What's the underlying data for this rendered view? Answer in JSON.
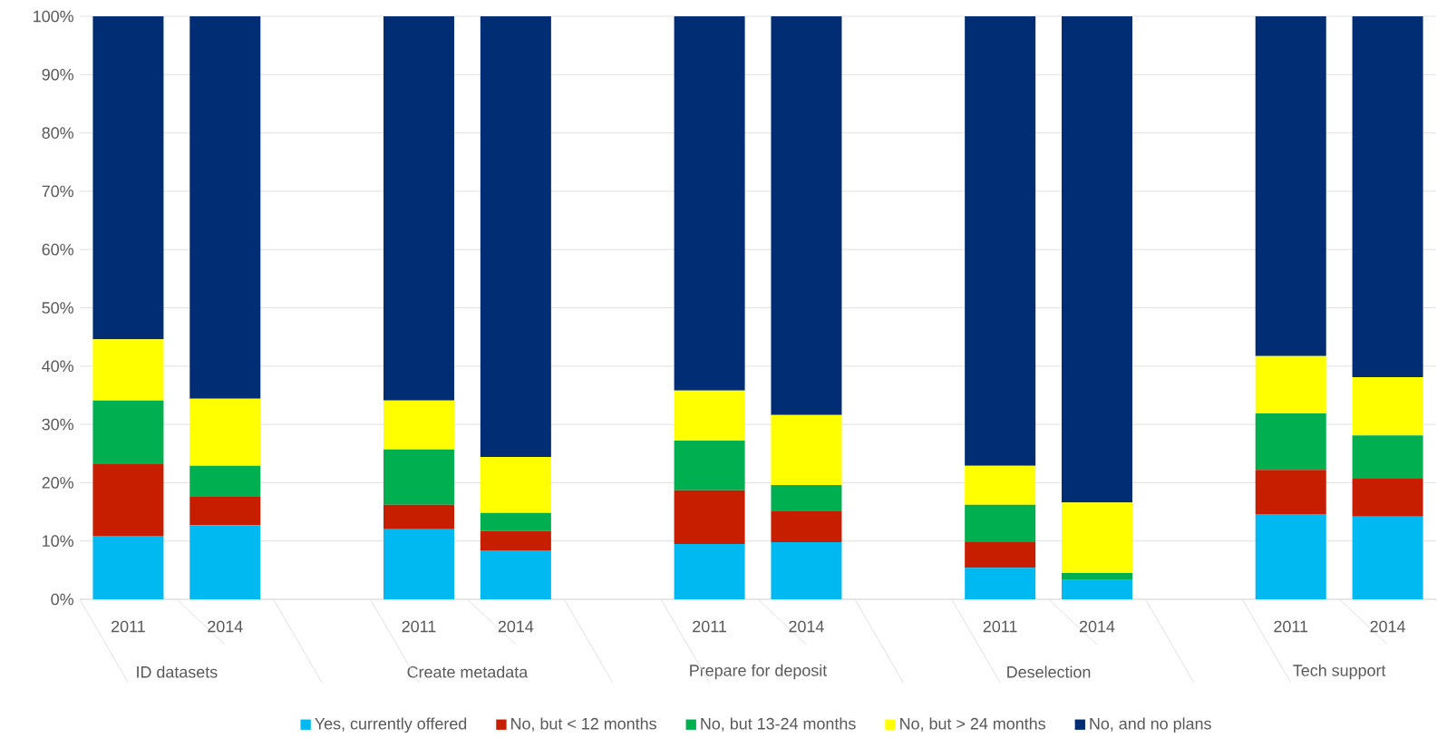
{
  "chart_data": {
    "type": "bar",
    "stacked": true,
    "categories": [
      "2011",
      "2014",
      null,
      "2011",
      "2014",
      null,
      "2011",
      "2014",
      null,
      "2011",
      "2014",
      null,
      "2011",
      "2014"
    ],
    "series": [
      {
        "name": "Yes, currently offered",
        "color": "#00b9f1",
        "values": [
          10.9,
          12.7,
          null,
          12.0,
          8.4,
          null,
          9.5,
          9.8,
          null,
          5.4,
          3.3,
          null,
          14.6,
          14.2
        ]
      },
      {
        "name": "No, but < 12 months",
        "color": "#c81e00",
        "values": [
          12.4,
          5.0,
          null,
          4.2,
          3.3,
          null,
          9.2,
          5.4,
          null,
          4.4,
          0,
          null,
          7.6,
          6.5
        ]
      },
      {
        "name": "No, but 13-24 months",
        "color": "#00b050",
        "values": [
          10.8,
          5.2,
          null,
          9.5,
          3.1,
          null,
          8.5,
          4.4,
          null,
          6.4,
          1.2,
          null,
          9.7,
          7.4
        ]
      },
      {
        "name": "No, but > 24 months",
        "color": "#ffff00",
        "values": [
          10.5,
          11.5,
          null,
          8.4,
          9.6,
          null,
          8.6,
          12.0,
          null,
          6.7,
          12.1,
          null,
          9.8,
          10.0
        ]
      },
      {
        "name": "No, and no plans",
        "color": "#002d73",
        "values": [
          55.4,
          65.6,
          null,
          65.9,
          75.6,
          null,
          64.2,
          68.4,
          null,
          77.1,
          83.4,
          null,
          58.3,
          61.9
        ]
      }
    ],
    "annotations": [
      "ID datasets",
      "Create metadata",
      "Prepare for deposit",
      "Deselection",
      "Tech support"
    ],
    "ylim": [
      0,
      100
    ],
    "yticks": [
      {
        "value": 0,
        "label": "0%"
      },
      {
        "value": 10,
        "label": "10%"
      },
      {
        "value": 20,
        "label": "20%"
      },
      {
        "value": 30,
        "label": "30%"
      },
      {
        "value": 40,
        "label": "40%"
      },
      {
        "value": 50,
        "label": "50%"
      },
      {
        "value": 60,
        "label": "60%"
      },
      {
        "value": 70,
        "label": "70%"
      },
      {
        "value": 80,
        "label": "80%"
      },
      {
        "value": 90,
        "label": "90%"
      },
      {
        "value": 100,
        "label": "100%"
      }
    ],
    "grid": "y",
    "legend": "bottom"
  }
}
